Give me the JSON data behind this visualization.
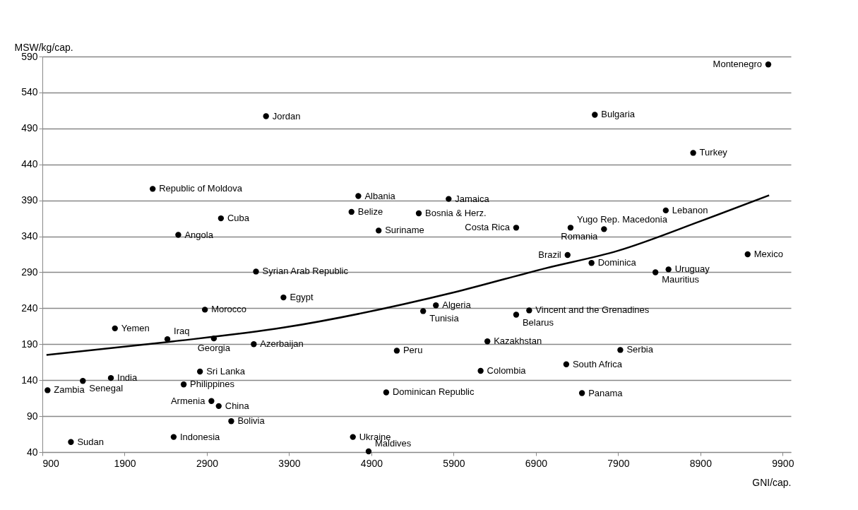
{
  "chart_data": {
    "type": "scatter",
    "xlabel": "GNI/cap.",
    "ylabel": "MSW/kg/cap.",
    "xlim": [
      900,
      10000
    ],
    "ylim": [
      40,
      590
    ],
    "xticks": [
      900,
      1900,
      2900,
      3900,
      4900,
      5900,
      6900,
      7900,
      8900,
      9900
    ],
    "yticks": [
      40,
      90,
      140,
      190,
      240,
      290,
      340,
      390,
      440,
      490,
      540,
      590
    ],
    "grid": "y",
    "marker": "circle",
    "series": [
      {
        "color": "#000000",
        "x": [
          3619,
          2241,
          3071,
          2552,
          3497,
          3831,
          2876,
          1782,
          2420,
          2985,
          3470,
          2816,
          1733,
          1392,
          963,
          2618,
          2955,
          3044,
          3196,
          2496,
          1247,
          4741,
          5839,
          4658,
          5476,
          4988,
          6660,
          5684,
          5529,
          6660,
          6818,
          6310,
          5209,
          6228,
          5080,
          4675,
          4866,
          9725,
          7616,
          8812,
          8479,
          7321,
          7728,
          7285,
          7576,
          9474,
          8512,
          8353,
          7926,
          7269,
          7460
        ],
        "values": [
          507,
          406,
          365,
          342,
          291,
          255,
          238,
          212,
          197,
          198,
          190,
          152,
          143,
          139,
          126,
          134,
          111,
          104,
          83,
          61,
          54,
          396,
          392,
          374,
          372,
          348,
          352,
          244,
          236,
          231,
          237,
          194,
          181,
          153,
          123,
          61,
          41,
          579,
          509,
          456,
          376,
          352,
          350,
          314,
          303,
          315,
          294,
          290,
          182,
          162,
          122
        ]
      },
      {
        "type": "line",
        "color": "#000000",
        "line_style": "solid",
        "marker": "none",
        "x": [
          950,
          2420,
          3827,
          5900,
          6997,
          7900,
          8900,
          9735
        ],
        "values": [
          175,
          193,
          213,
          262,
          295,
          320,
          361,
          397
        ]
      }
    ],
    "annotations": [
      {
        "text": "Jordan",
        "x": 3619,
        "y": 507
      },
      {
        "text": "Republic of Moldova",
        "x": 2241,
        "y": 406
      },
      {
        "text": "Cuba",
        "x": 3071,
        "y": 365
      },
      {
        "text": "Angola",
        "x": 2552,
        "y": 342
      },
      {
        "text": "Syrian Arab Republic",
        "x": 3497,
        "y": 291
      },
      {
        "text": "Egypt",
        "x": 3831,
        "y": 255
      },
      {
        "text": "Morocco",
        "x": 2876,
        "y": 238
      },
      {
        "text": "Yemen",
        "x": 1782,
        "y": 212
      },
      {
        "text": "Iraq",
        "x": 2420,
        "y": 197
      },
      {
        "text": "Georgia",
        "x": 2985,
        "y": 198
      },
      {
        "text": "Azerbaijan",
        "x": 3470,
        "y": 190
      },
      {
        "text": "Sri Lanka",
        "x": 2816,
        "y": 152
      },
      {
        "text": "India",
        "x": 1733,
        "y": 143
      },
      {
        "text": "Senegal",
        "x": 1392,
        "y": 139
      },
      {
        "text": "Zambia",
        "x": 963,
        "y": 126
      },
      {
        "text": "Philippines",
        "x": 2618,
        "y": 134
      },
      {
        "text": "Armenia",
        "x": 2955,
        "y": 111
      },
      {
        "text": "China",
        "x": 3044,
        "y": 104
      },
      {
        "text": "Bolivia",
        "x": 3196,
        "y": 83
      },
      {
        "text": "Indonesia",
        "x": 2496,
        "y": 61
      },
      {
        "text": "Sudan",
        "x": 1247,
        "y": 54
      },
      {
        "text": "Albania",
        "x": 4741,
        "y": 396
      },
      {
        "text": "Jamaica",
        "x": 5839,
        "y": 392
      },
      {
        "text": "Belize",
        "x": 4658,
        "y": 374
      },
      {
        "text": "Bosnia & Herz.",
        "x": 5476,
        "y": 372
      },
      {
        "text": "Suriname",
        "x": 4988,
        "y": 348
      },
      {
        "text": "Costa Rica",
        "x": 6660,
        "y": 352
      },
      {
        "text": "Algeria",
        "x": 5684,
        "y": 244
      },
      {
        "text": "Tunisia",
        "x": 5529,
        "y": 236
      },
      {
        "text": "Belarus",
        "x": 6660,
        "y": 231
      },
      {
        "text": "Vincent and the Grenadines",
        "x": 6818,
        "y": 237
      },
      {
        "text": "Kazakhstan",
        "x": 6310,
        "y": 194
      },
      {
        "text": "Peru",
        "x": 5209,
        "y": 181
      },
      {
        "text": "Colombia",
        "x": 6228,
        "y": 153
      },
      {
        "text": "Dominican Republic",
        "x": 5080,
        "y": 123
      },
      {
        "text": "Ukraine",
        "x": 4675,
        "y": 61
      },
      {
        "text": "Maldives",
        "x": 4866,
        "y": 41
      },
      {
        "text": "Montenegro",
        "x": 9725,
        "y": 579
      },
      {
        "text": "Bulgaria",
        "x": 7616,
        "y": 509
      },
      {
        "text": "Turkey",
        "x": 8812,
        "y": 456
      },
      {
        "text": "Lebanon",
        "x": 8479,
        "y": 376
      },
      {
        "text": "Yugo Rep. Macedonia",
        "x": 7321,
        "y": 352
      },
      {
        "text": "Romania",
        "x": 7728,
        "y": 350
      },
      {
        "text": "Brazil",
        "x": 7285,
        "y": 314
      },
      {
        "text": "Dominica",
        "x": 7576,
        "y": 303
      },
      {
        "text": "Mexico",
        "x": 9474,
        "y": 315
      },
      {
        "text": "Uruguay",
        "x": 8512,
        "y": 294
      },
      {
        "text": "Mauritius",
        "x": 8353,
        "y": 290
      },
      {
        "text": "Serbia",
        "x": 7926,
        "y": 182
      },
      {
        "text": "South Africa",
        "x": 7269,
        "y": 162
      },
      {
        "text": "Panama",
        "x": 7460,
        "y": 122
      }
    ]
  }
}
